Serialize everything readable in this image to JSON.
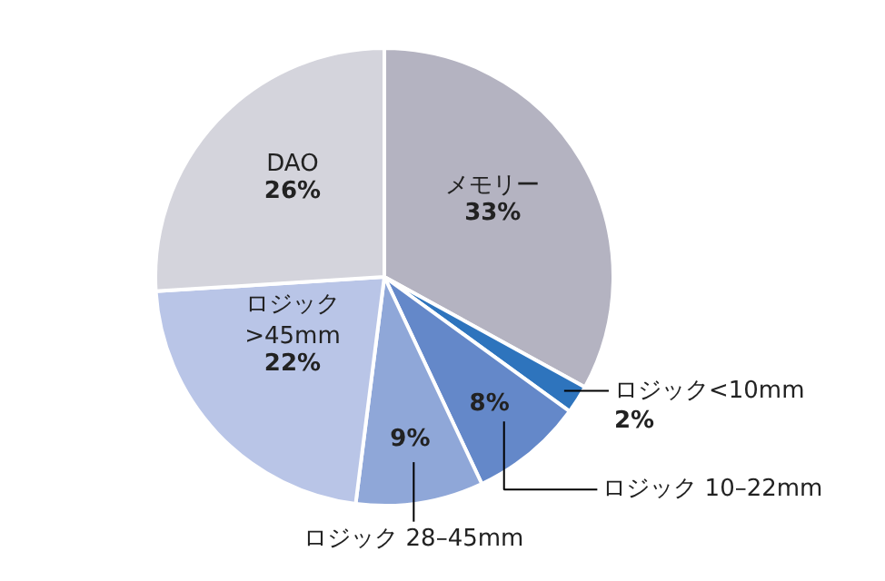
{
  "chart_data": {
    "type": "pie",
    "categories": [
      "メモリー",
      "ロジック<10mm",
      "ロジック 10–22mm",
      "ロジック 28–45mm",
      "ロジック\n>45mm",
      "DAO"
    ],
    "values": [
      33,
      2,
      8,
      9,
      22,
      26
    ],
    "value_labels": [
      "33%",
      "2%",
      "8%",
      "9%",
      "22%",
      "26%"
    ],
    "colors": [
      "#b4b3c1",
      "#2e74bd",
      "#6488c9",
      "#8fa7d8",
      "#b9c5e7",
      "#d4d4dc"
    ]
  }
}
